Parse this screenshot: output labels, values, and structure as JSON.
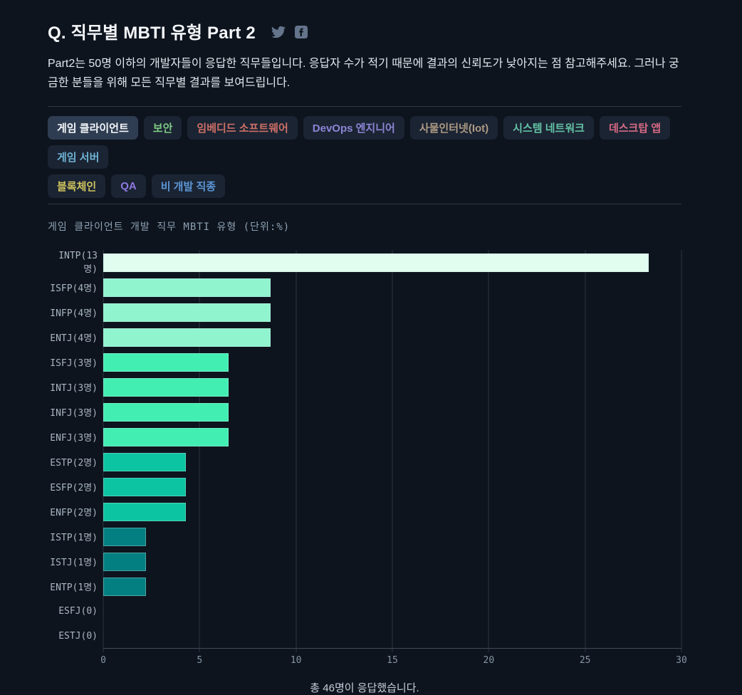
{
  "header": {
    "title": "Q. 직무별 MBTI 유형 Part 2",
    "share_icons": [
      "twitter-icon",
      "facebook-icon"
    ],
    "icon_color": "#64748b"
  },
  "page": {
    "description": "Part2는 50명 이하의 개발자들이 응답한 직무들입니다. 응답자 수가 적기 때문에 결과의 신뢰도가 낮아지는 점 참고해주세요. 그러나 궁금한 분들을 위해 모든 직무별 결과를 보여드립니다.",
    "footer": "총 46명이 응답했습니다.",
    "background_color": "#0d141e"
  },
  "filters": {
    "selected": "게임 클라이언트",
    "items": [
      {
        "label": "게임 클라이언트",
        "color": "#f5f7fa",
        "selected": true,
        "row": 1
      },
      {
        "label": "보안",
        "color": "#7ec983",
        "selected": false,
        "row": 1
      },
      {
        "label": "임베디드 소프트웨어",
        "color": "#cf6f66",
        "selected": false,
        "row": 1
      },
      {
        "label": "DevOps 엔지니어",
        "color": "#8d85d6",
        "selected": false,
        "row": 1
      },
      {
        "label": "사물인터넷(Iot)",
        "color": "#ae9a84",
        "selected": false,
        "row": 1
      },
      {
        "label": "시스템 네트워크",
        "color": "#63c2a5",
        "selected": false,
        "row": 1
      },
      {
        "label": "데스크탑 앱",
        "color": "#d76a84",
        "selected": false,
        "row": 1
      },
      {
        "label": "게임 서버",
        "color": "#6fb3d4",
        "selected": false,
        "row": 1
      },
      {
        "label": "블록체인",
        "color": "#cfc35f",
        "selected": false,
        "row": 2
      },
      {
        "label": "QA",
        "color": "#8f7ae0",
        "selected": false,
        "row": 2
      },
      {
        "label": "비 개발 직종",
        "color": "#5c96d6",
        "selected": false,
        "row": 2
      }
    ]
  },
  "chart_data": {
    "type": "bar",
    "orientation": "horizontal",
    "title": "게임 클라이언트 개발 직무 MBTI 유형 (단위:%)",
    "unit": "%",
    "total_respondents": 46,
    "categories": [
      "INTP(13명)",
      "ISFP(4명)",
      "INFP(4명)",
      "ENTJ(4명)",
      "ISFJ(3명)",
      "INTJ(3명)",
      "INFJ(3명)",
      "ENFJ(3명)",
      "ESTP(2명)",
      "ESFP(2명)",
      "ENFP(2명)",
      "ISTP(1명)",
      "ISTJ(1명)",
      "ENTP(1명)",
      "ESFJ(0)",
      "ESTJ(0)"
    ],
    "counts": [
      13,
      4,
      4,
      4,
      3,
      3,
      3,
      3,
      2,
      2,
      2,
      1,
      1,
      1,
      0,
      0
    ],
    "values": [
      28.3,
      8.7,
      8.7,
      8.7,
      6.5,
      6.5,
      6.5,
      6.5,
      4.3,
      4.3,
      4.3,
      2.2,
      2.2,
      2.2,
      0,
      0
    ],
    "bar_colors": [
      "#e0fdf0",
      "#90f4cf",
      "#90f4cf",
      "#90f4cf",
      "#42eeb2",
      "#42eeb2",
      "#42eeb2",
      "#42eeb2",
      "#0cc4a2",
      "#0cc4a2",
      "#0cc4a2",
      "#047f81",
      "#047f81",
      "#047f81",
      "#047f81",
      "#047f81"
    ],
    "xlim": [
      0,
      30
    ],
    "xticks": [
      0,
      5,
      10,
      15,
      20,
      25,
      30
    ],
    "grid": true,
    "legend": false
  }
}
